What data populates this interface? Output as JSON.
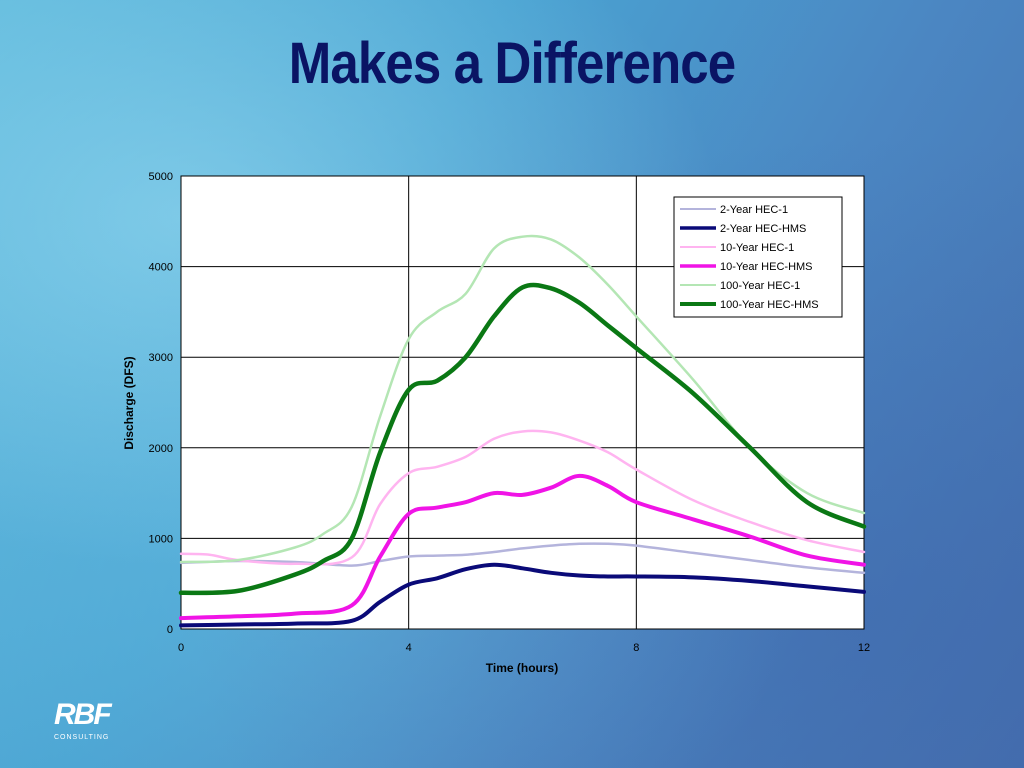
{
  "slide": {
    "title": "Makes a Difference"
  },
  "logo": {
    "mark": "RBF",
    "sub": "CONSULTING"
  },
  "chart_data": {
    "type": "line",
    "xlabel": "Time (hours)",
    "ylabel": "Discharge (DFS)",
    "xlim": [
      0,
      12
    ],
    "ylim": [
      0,
      5000
    ],
    "xticks": [
      0,
      4,
      8,
      12
    ],
    "yticks": [
      0,
      1000,
      2000,
      3000,
      4000,
      5000
    ],
    "grid": true,
    "legend_position": "top-right",
    "series": [
      {
        "name": "2-Year HEC-1",
        "color": "#b4b4dc",
        "width": 2.5,
        "x": [
          0,
          1,
          2,
          3,
          3.5,
          4,
          4.5,
          5,
          5.5,
          6,
          6.5,
          7,
          7.5,
          8,
          9,
          10,
          11,
          12
        ],
        "y": [
          730,
          750,
          740,
          700,
          750,
          800,
          810,
          820,
          850,
          890,
          920,
          940,
          940,
          920,
          840,
          760,
          680,
          620
        ]
      },
      {
        "name": "2-Year HEC-HMS",
        "color": "#0a0a78",
        "width": 4,
        "x": [
          0,
          1,
          2,
          3,
          3.5,
          4,
          4.5,
          5,
          5.5,
          6,
          6.5,
          7,
          7.5,
          8,
          9,
          10,
          11,
          12
        ],
        "y": [
          40,
          50,
          60,
          90,
          300,
          490,
          560,
          660,
          710,
          670,
          620,
          590,
          580,
          580,
          570,
          530,
          470,
          410
        ]
      },
      {
        "name": "10-Year HEC-1",
        "color": "#ffb4f0",
        "width": 2.5,
        "x": [
          0,
          0.5,
          1,
          2,
          3,
          3.5,
          4,
          4.5,
          5,
          5.5,
          6,
          6.5,
          7,
          7.5,
          8,
          9,
          10,
          11,
          12
        ],
        "y": [
          830,
          820,
          760,
          720,
          790,
          1380,
          1720,
          1790,
          1900,
          2100,
          2180,
          2170,
          2080,
          1950,
          1760,
          1420,
          1180,
          980,
          850
        ]
      },
      {
        "name": "10-Year HEC-HMS",
        "color": "#f014e6",
        "width": 4,
        "x": [
          0,
          1,
          2,
          3,
          3.5,
          4,
          4.5,
          5,
          5.5,
          6,
          6.5,
          7,
          7.5,
          8,
          9,
          10,
          11,
          12
        ],
        "y": [
          120,
          140,
          170,
          260,
          800,
          1270,
          1340,
          1400,
          1500,
          1480,
          1560,
          1690,
          1580,
          1400,
          1210,
          1020,
          810,
          710
        ]
      },
      {
        "name": "100-Year HEC-1",
        "color": "#b4e6b4",
        "width": 2.5,
        "x": [
          0,
          1,
          2,
          2.5,
          3,
          3.5,
          4,
          4.5,
          5,
          5.5,
          6,
          6.5,
          7,
          7.5,
          8,
          9,
          10,
          11,
          12
        ],
        "y": [
          740,
          760,
          900,
          1050,
          1350,
          2350,
          3200,
          3500,
          3700,
          4200,
          4330,
          4300,
          4100,
          3800,
          3450,
          2750,
          2000,
          1500,
          1280
        ]
      },
      {
        "name": "100-Year HEC-HMS",
        "color": "#0a7814",
        "width": 4.5,
        "x": [
          0,
          1,
          2,
          2.5,
          3,
          3.5,
          4,
          4.5,
          5,
          5.5,
          6,
          6.5,
          7,
          7.5,
          8,
          9,
          10,
          11,
          12
        ],
        "y": [
          400,
          420,
          600,
          750,
          1000,
          1950,
          2640,
          2740,
          3000,
          3450,
          3770,
          3760,
          3600,
          3350,
          3100,
          2600,
          2000,
          1400,
          1130
        ]
      }
    ]
  }
}
